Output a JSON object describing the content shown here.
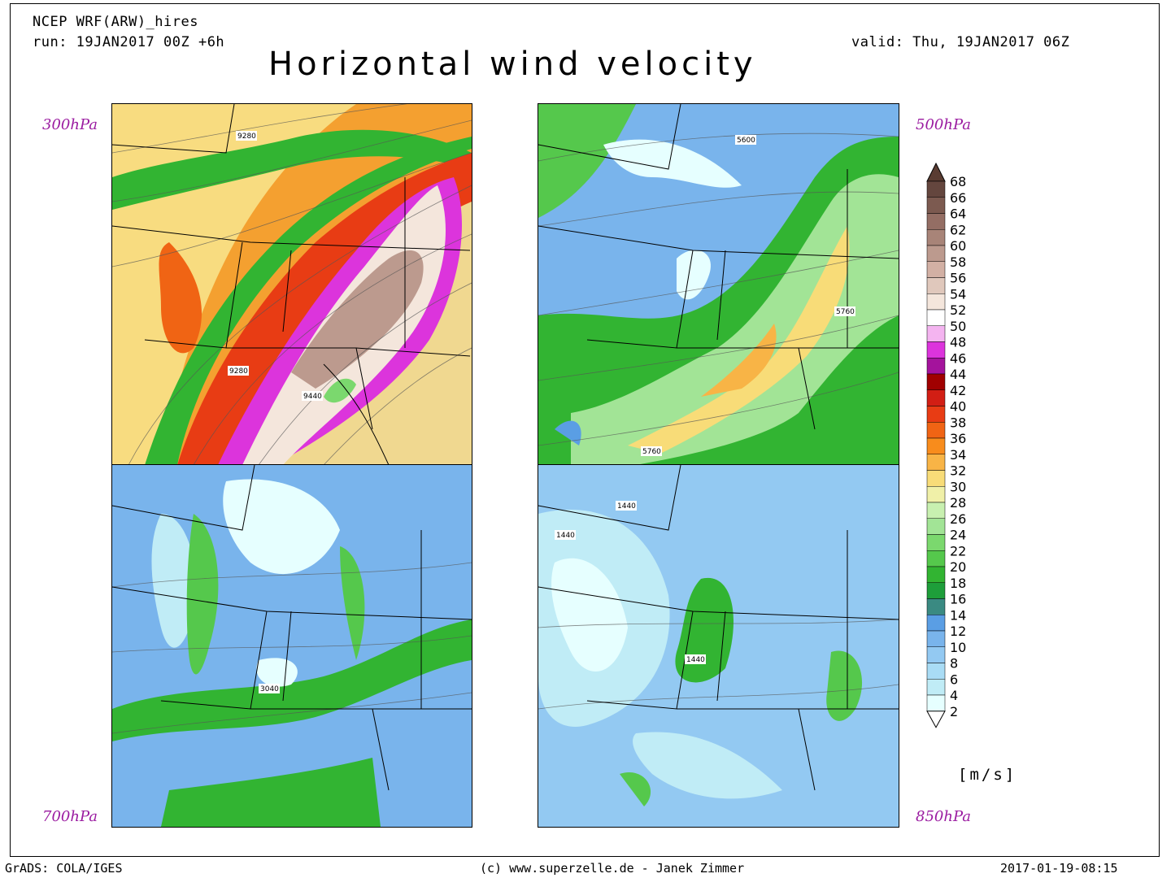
{
  "header": {
    "model": "NCEP WRF(ARW)_hires",
    "run": "run: 19JAN2017 00Z +6h",
    "valid": "valid: Thu, 19JAN2017 06Z",
    "title": "Horizontal wind velocity"
  },
  "panels": {
    "p300": {
      "level": "300hPa",
      "contour_labels": [
        "9280",
        "9280",
        "9440"
      ]
    },
    "p500": {
      "level": "500hPa",
      "contour_labels": [
        "5600",
        "5760",
        "5760"
      ]
    },
    "p700": {
      "level": "700hPa",
      "contour_labels": [
        "3040"
      ]
    },
    "p850": {
      "level": "850hPa",
      "contour_labels": [
        "1440",
        "1440",
        "1440"
      ]
    }
  },
  "colorbar": {
    "units": "[m/s]",
    "levels": [
      "2",
      "4",
      "6",
      "8",
      "10",
      "12",
      "14",
      "16",
      "18",
      "20",
      "22",
      "24",
      "26",
      "28",
      "30",
      "32",
      "34",
      "36",
      "38",
      "40",
      "42",
      "44",
      "46",
      "48",
      "50",
      "52",
      "54",
      "56",
      "58",
      "60",
      "62",
      "64",
      "66",
      "68"
    ],
    "colors": [
      "#e6ffff",
      "#c0ecf6",
      "#a9dcf5",
      "#93c9f2",
      "#79b4ec",
      "#5a9ee4",
      "#3a8a82",
      "#1e9e3a",
      "#32b432",
      "#55c84c",
      "#7bd86e",
      "#a2e496",
      "#c8f0b0",
      "#f0f0a8",
      "#f8dc78",
      "#f8b446",
      "#f88c1c",
      "#f06414",
      "#e83c14",
      "#d21e14",
      "#a00000",
      "#a4139c",
      "#dc34dc",
      "#f4b4f0",
      "#ffffff",
      "#f4e6dc",
      "#e0c8bc",
      "#d2b0a4",
      "#bc9a8e",
      "#a88478",
      "#946e64",
      "#7c5a50",
      "#64463e"
    ],
    "top_arrow_color": "#5a3c32",
    "bottom_arrow_color": "#ffffff"
  },
  "footer": {
    "left": "GrADS: COLA/IGES",
    "center": "(c) www.superzelle.de - Janek Zimmer",
    "right": "2017-01-19-08:15"
  }
}
